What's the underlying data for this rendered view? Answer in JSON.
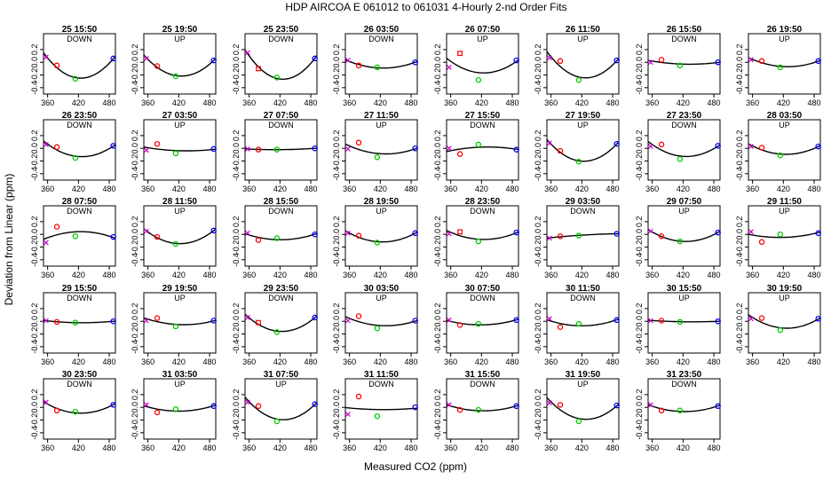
{
  "title": "HDP   AIRCOA E   061012 to 061031   4-Hourly 2-nd Order Fits",
  "xlabel": "Measured CO2 (ppm)",
  "ylabel": "Deviation from Linear (ppm)",
  "chart_data": {
    "type": "scatter",
    "layout": "small-multiples",
    "xlim": [
      352,
      492
    ],
    "ylim": [
      -0.5,
      0.45
    ],
    "xticks": [
      360,
      420,
      480
    ],
    "yticks": [
      -0.4,
      -0.2,
      0.0,
      0.2
    ],
    "xticklabels": [
      "360",
      "420",
      "480"
    ],
    "yticklabels": [
      "-0.4",
      "-0.2",
      "0.0",
      "0.2"
    ],
    "standards_x": [
      357,
      378,
      414,
      488
    ],
    "point_colors": [
      "#cc00cc",
      "#ff0000",
      "#00cc00",
      "#0000ff"
    ],
    "fit_color": "#000000",
    "panels": [
      {
        "title": "25 15:50",
        "dir": "DOWN",
        "pts": [
          0.08,
          -0.05,
          -0.26,
          0.06
        ],
        "marks": [
          "x",
          "o",
          "o",
          "o"
        ]
      },
      {
        "title": "25 19:50",
        "dir": "UP",
        "pts": [
          0.06,
          -0.06,
          -0.22,
          0.03
        ],
        "marks": [
          "x",
          "o",
          "o",
          "o"
        ]
      },
      {
        "title": "25 23:50",
        "dir": "DOWN",
        "pts": [
          0.15,
          -0.1,
          -0.24,
          0.06
        ],
        "marks": [
          "x",
          "s",
          "o",
          "o"
        ]
      },
      {
        "title": "26 03:50",
        "dir": "DOWN",
        "pts": [
          0.03,
          -0.05,
          -0.08,
          0.0
        ],
        "marks": [
          "x",
          "o",
          "o",
          "o"
        ]
      },
      {
        "title": "26 07:50",
        "dir": "UP",
        "pts": [
          -0.08,
          0.14,
          -0.28,
          0.03
        ],
        "marks": [
          "x",
          "s",
          "o",
          "o"
        ]
      },
      {
        "title": "26 11:50",
        "dir": "UP",
        "pts": [
          0.07,
          0.02,
          -0.28,
          0.03
        ],
        "marks": [
          "x",
          "o",
          "o",
          "o"
        ]
      },
      {
        "title": "26 15:50",
        "dir": "DOWN",
        "pts": [
          0.0,
          0.04,
          -0.05,
          0.0
        ],
        "marks": [
          "x",
          "o",
          "o",
          "o"
        ]
      },
      {
        "title": "26 19:50",
        "dir": "UP",
        "pts": [
          0.04,
          0.02,
          -0.08,
          0.02
        ],
        "marks": [
          "x",
          "o",
          "o",
          "o"
        ]
      },
      {
        "title": "26 23:50",
        "dir": "DOWN",
        "pts": [
          0.06,
          0.02,
          -0.15,
          0.04
        ],
        "marks": [
          "x",
          "o",
          "o",
          "o"
        ]
      },
      {
        "title": "27 03:50",
        "dir": "UP",
        "pts": [
          -0.03,
          0.07,
          -0.08,
          -0.01
        ],
        "marks": [
          "x",
          "o",
          "o",
          "o"
        ]
      },
      {
        "title": "27 07:50",
        "dir": "DOWN",
        "pts": [
          -0.01,
          -0.02,
          -0.02,
          0.0
        ],
        "marks": [
          "x",
          "o",
          "o",
          "o"
        ]
      },
      {
        "title": "27 11:50",
        "dir": "UP",
        "pts": [
          -0.01,
          0.09,
          -0.14,
          0.0
        ],
        "marks": [
          "x",
          "o",
          "o",
          "o"
        ]
      },
      {
        "title": "27 15:50",
        "dir": "DOWN",
        "pts": [
          0.0,
          -0.09,
          0.06,
          -0.02
        ],
        "marks": [
          "x",
          "o",
          "o",
          "o"
        ]
      },
      {
        "title": "27 19:50",
        "dir": "UP",
        "pts": [
          0.08,
          -0.04,
          -0.21,
          0.07
        ],
        "marks": [
          "x",
          "o",
          "o",
          "o"
        ]
      },
      {
        "title": "27 23:50",
        "dir": "DOWN",
        "pts": [
          0.03,
          0.06,
          -0.17,
          0.04
        ],
        "marks": [
          "x",
          "o",
          "o",
          "o"
        ]
      },
      {
        "title": "28 03:50",
        "dir": "UP",
        "pts": [
          0.03,
          0.01,
          -0.11,
          0.03
        ],
        "marks": [
          "x",
          "o",
          "o",
          "o"
        ]
      },
      {
        "title": "28 07:50",
        "dir": "DOWN",
        "pts": [
          -0.13,
          0.12,
          -0.03,
          -0.04
        ],
        "marks": [
          "x",
          "o",
          "o",
          "o"
        ]
      },
      {
        "title": "28 11:50",
        "dir": "UP",
        "pts": [
          0.05,
          -0.04,
          -0.15,
          0.06
        ],
        "marks": [
          "x",
          "o",
          "o",
          "o"
        ]
      },
      {
        "title": "28 15:50",
        "dir": "DOWN",
        "pts": [
          0.02,
          -0.09,
          -0.06,
          0.0
        ],
        "marks": [
          "x",
          "o",
          "o",
          "o"
        ]
      },
      {
        "title": "28 19:50",
        "dir": "UP",
        "pts": [
          0.02,
          -0.02,
          -0.13,
          0.02
        ],
        "marks": [
          "x",
          "o",
          "o",
          "o"
        ]
      },
      {
        "title": "28 23:50",
        "dir": "DOWN",
        "pts": [
          0.01,
          0.04,
          -0.11,
          0.03
        ],
        "marks": [
          "x",
          "s",
          "o",
          "o"
        ]
      },
      {
        "title": "29 03:50",
        "dir": "DOWN",
        "pts": [
          -0.06,
          -0.03,
          -0.02,
          0.01
        ],
        "marks": [
          "x",
          "o",
          "o",
          "o"
        ]
      },
      {
        "title": "29 07:50",
        "dir": "UP",
        "pts": [
          0.05,
          -0.03,
          -0.11,
          0.03
        ],
        "marks": [
          "x",
          "o",
          "o",
          "o"
        ]
      },
      {
        "title": "29 11:50",
        "dir": "UP",
        "pts": [
          0.04,
          -0.12,
          0.0,
          0.02
        ],
        "marks": [
          "x",
          "o",
          "o",
          "o"
        ]
      },
      {
        "title": "29 15:50",
        "dir": "DOWN",
        "pts": [
          0.01,
          -0.01,
          -0.02,
          0.0
        ],
        "marks": [
          "x",
          "o",
          "o",
          "o"
        ]
      },
      {
        "title": "29 19:50",
        "dir": "UP",
        "pts": [
          0.01,
          0.05,
          -0.08,
          0.01
        ],
        "marks": [
          "x",
          "o",
          "o",
          "o"
        ]
      },
      {
        "title": "29 23:50",
        "dir": "DOWN",
        "pts": [
          0.06,
          -0.02,
          -0.17,
          0.06
        ],
        "marks": [
          "x",
          "s",
          "o",
          "o"
        ]
      },
      {
        "title": "30 03:50",
        "dir": "UP",
        "pts": [
          0.01,
          0.08,
          -0.11,
          0.01
        ],
        "marks": [
          "x",
          "o",
          "o",
          "o"
        ]
      },
      {
        "title": "30 07:50",
        "dir": "DOWN",
        "pts": [
          0.02,
          -0.06,
          -0.04,
          0.02
        ],
        "marks": [
          "x",
          "o",
          "o",
          "o"
        ]
      },
      {
        "title": "30 11:50",
        "dir": "DOWN",
        "pts": [
          0.04,
          -0.09,
          -0.04,
          0.02
        ],
        "marks": [
          "x",
          "o",
          "o",
          "o"
        ]
      },
      {
        "title": "30 15:50",
        "dir": "UP",
        "pts": [
          0.01,
          0.01,
          -0.01,
          0.0
        ],
        "marks": [
          "x",
          "o",
          "o",
          "o"
        ]
      },
      {
        "title": "30 19:50",
        "dir": "UP",
        "pts": [
          0.04,
          0.05,
          -0.14,
          0.04
        ],
        "marks": [
          "x",
          "o",
          "o",
          "o"
        ]
      },
      {
        "title": "30 23:50",
        "dir": "DOWN",
        "pts": [
          0.08,
          -0.05,
          -0.07,
          0.04
        ],
        "marks": [
          "x",
          "o",
          "o",
          "o"
        ]
      },
      {
        "title": "31 03:50",
        "dir": "UP",
        "pts": [
          0.04,
          -0.08,
          -0.03,
          0.02
        ],
        "marks": [
          "x",
          "o",
          "o",
          "o"
        ]
      },
      {
        "title": "31 07:50",
        "dir": "UP",
        "pts": [
          0.08,
          0.02,
          -0.22,
          0.05
        ],
        "marks": [
          "x",
          "o",
          "o",
          "o"
        ]
      },
      {
        "title": "31 11:50",
        "dir": "DOWN",
        "pts": [
          -0.11,
          0.17,
          -0.14,
          0.0
        ],
        "marks": [
          "x",
          "o",
          "o",
          "o"
        ]
      },
      {
        "title": "31 15:50",
        "dir": "DOWN",
        "pts": [
          0.04,
          -0.04,
          -0.04,
          0.02
        ],
        "marks": [
          "x",
          "o",
          "o",
          "o"
        ]
      },
      {
        "title": "31 19:50",
        "dir": "UP",
        "pts": [
          0.07,
          0.04,
          -0.22,
          0.03
        ],
        "marks": [
          "x",
          "o",
          "o",
          "o"
        ]
      },
      {
        "title": "31 23:50",
        "dir": "DOWN",
        "pts": [
          0.04,
          -0.05,
          -0.05,
          0.02
        ],
        "marks": [
          "x",
          "o",
          "o",
          "o"
        ]
      }
    ]
  }
}
